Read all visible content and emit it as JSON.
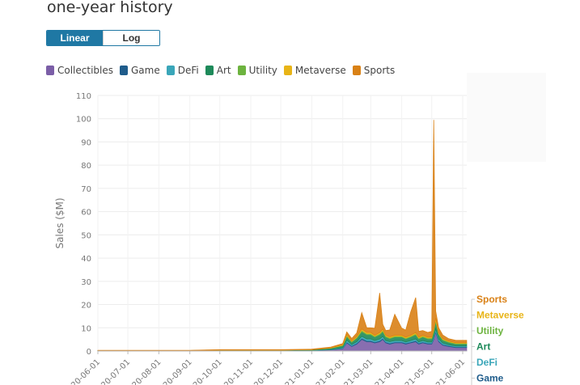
{
  "header": {
    "title": "one-year history"
  },
  "toggle": {
    "linear_label": "Linear",
    "log_label": "Log",
    "active": "Linear"
  },
  "chart_data": {
    "type": "area",
    "title": "one-year history",
    "ylabel": "Sales ($M)",
    "xlabel": "",
    "scale": "linear",
    "ylim": [
      0,
      110
    ],
    "yticks": [
      0,
      10,
      20,
      30,
      40,
      50,
      60,
      70,
      80,
      90,
      100,
      110
    ],
    "grid": true,
    "legend_placement": "top",
    "x_ticks": [
      "2020-06-01",
      "2020-07-01",
      "2020-08-01",
      "2020-09-01",
      "2020-10-01",
      "2020-11-01",
      "2020-12-01",
      "2021-01-01",
      "2021-02-01",
      "2021-03-01",
      "2021-04-01",
      "2021-05-01",
      "2021-06-01"
    ],
    "x_tick_labels": [
      "20-06-01",
      "20-07-01",
      "20-08-01",
      "20-09-01",
      "20-10-01",
      "20-11-01",
      "20-12-01",
      "21-01-01",
      "21-02-01",
      "21-03-01",
      "21-04-01",
      "21-05-01",
      "21-06-01"
    ],
    "x": [
      "2020-06-01",
      "2020-07-01",
      "2020-08-01",
      "2020-09-01",
      "2020-10-01",
      "2020-11-01",
      "2020-12-01",
      "2021-01-01",
      "2021-01-20",
      "2021-02-01",
      "2021-02-05",
      "2021-02-10",
      "2021-02-15",
      "2021-02-20",
      "2021-02-25",
      "2021-03-01",
      "2021-03-05",
      "2021-03-10",
      "2021-03-13",
      "2021-03-16",
      "2021-03-20",
      "2021-03-25",
      "2021-04-01",
      "2021-04-05",
      "2021-04-10",
      "2021-04-15",
      "2021-04-18",
      "2021-04-22",
      "2021-04-27",
      "2021-05-01",
      "2021-05-03",
      "2021-05-05",
      "2021-05-08",
      "2021-05-12",
      "2021-05-18",
      "2021-05-25",
      "2021-06-01",
      "2021-06-05"
    ],
    "series": [
      {
        "name": "Collectibles",
        "color": "#7b5ea7",
        "values": [
          0.1,
          0.1,
          0.1,
          0.1,
          0.2,
          0.2,
          0.2,
          0.3,
          0.5,
          1,
          3.5,
          2,
          3,
          5,
          4,
          4,
          3.5,
          4,
          5,
          3.5,
          3,
          3.5,
          3.5,
          3,
          3.5,
          4,
          3,
          3.5,
          3,
          3,
          5,
          8,
          4,
          2.5,
          2,
          1.5,
          1.5,
          1.5
        ]
      },
      {
        "name": "Game",
        "color": "#1f5c8b",
        "values": [
          0,
          0,
          0,
          0,
          0,
          0,
          0,
          0,
          0.1,
          0.2,
          0.4,
          0.3,
          0.4,
          0.5,
          0.5,
          0.5,
          0.4,
          0.5,
          0.5,
          0.4,
          0.4,
          0.4,
          0.4,
          0.4,
          0.4,
          0.5,
          0.4,
          0.4,
          0.4,
          0.4,
          0.5,
          0.6,
          0.5,
          0.4,
          0.3,
          0.3,
          0.3,
          0.3
        ]
      },
      {
        "name": "DeFi",
        "color": "#3aa6b9",
        "values": [
          0,
          0,
          0,
          0,
          0,
          0,
          0,
          0,
          0.1,
          0.3,
          0.8,
          0.5,
          0.6,
          0.8,
          0.7,
          0.7,
          0.6,
          0.7,
          0.8,
          0.6,
          0.6,
          0.6,
          0.6,
          0.5,
          0.6,
          0.7,
          0.5,
          0.6,
          0.5,
          0.5,
          0.8,
          1,
          0.7,
          0.5,
          0.4,
          0.4,
          0.4,
          0.4
        ]
      },
      {
        "name": "Art",
        "color": "#1e8a5a",
        "values": [
          0.1,
          0.1,
          0.1,
          0.1,
          0.2,
          0.2,
          0.2,
          0.3,
          0.5,
          0.8,
          1.5,
          1,
          1.5,
          2,
          1.8,
          1.8,
          1.5,
          1.8,
          2,
          1.5,
          1.3,
          1.5,
          1.5,
          1.3,
          1.5,
          1.8,
          1.3,
          1.5,
          1.3,
          1.3,
          2,
          3,
          1.8,
          1.2,
          1,
          0.8,
          0.8,
          0.8
        ]
      },
      {
        "name": "Utility",
        "color": "#6db33f",
        "values": [
          0,
          0,
          0,
          0,
          0,
          0,
          0,
          0,
          0.1,
          0.2,
          0.5,
          0.3,
          0.4,
          0.6,
          0.5,
          0.5,
          0.4,
          0.5,
          0.6,
          0.4,
          0.4,
          0.4,
          0.4,
          0.4,
          0.4,
          0.5,
          0.4,
          0.4,
          0.4,
          0.4,
          0.6,
          0.8,
          0.5,
          0.4,
          0.3,
          0.3,
          0.3,
          0.3
        ]
      },
      {
        "name": "Metaverse",
        "color": "#e8b417",
        "values": [
          0,
          0,
          0,
          0,
          0,
          0,
          0,
          0,
          0.1,
          0.2,
          0.5,
          0.3,
          0.4,
          0.6,
          0.5,
          0.5,
          0.4,
          0.5,
          0.6,
          0.4,
          0.4,
          0.4,
          0.4,
          0.4,
          0.4,
          0.5,
          0.4,
          0.4,
          0.4,
          0.4,
          0.6,
          0.8,
          0.5,
          0.4,
          0.3,
          0.3,
          0.3,
          0.3
        ]
      },
      {
        "name": "Sports",
        "color": "#d98116",
        "values": [
          0.1,
          0.1,
          0.1,
          0.1,
          0.2,
          0.2,
          0.2,
          0.2,
          0.3,
          0.5,
          1,
          1,
          1.5,
          7,
          2,
          2,
          3,
          17,
          2,
          2,
          3,
          9,
          3,
          3,
          10,
          15,
          2.5,
          2,
          2,
          2.5,
          90,
          3,
          2,
          1.5,
          1,
          1,
          1,
          1
        ]
      }
    ],
    "end_labels": [
      "Sports",
      "Metaverse",
      "Utility",
      "Art",
      "DeFi",
      "Game"
    ]
  }
}
